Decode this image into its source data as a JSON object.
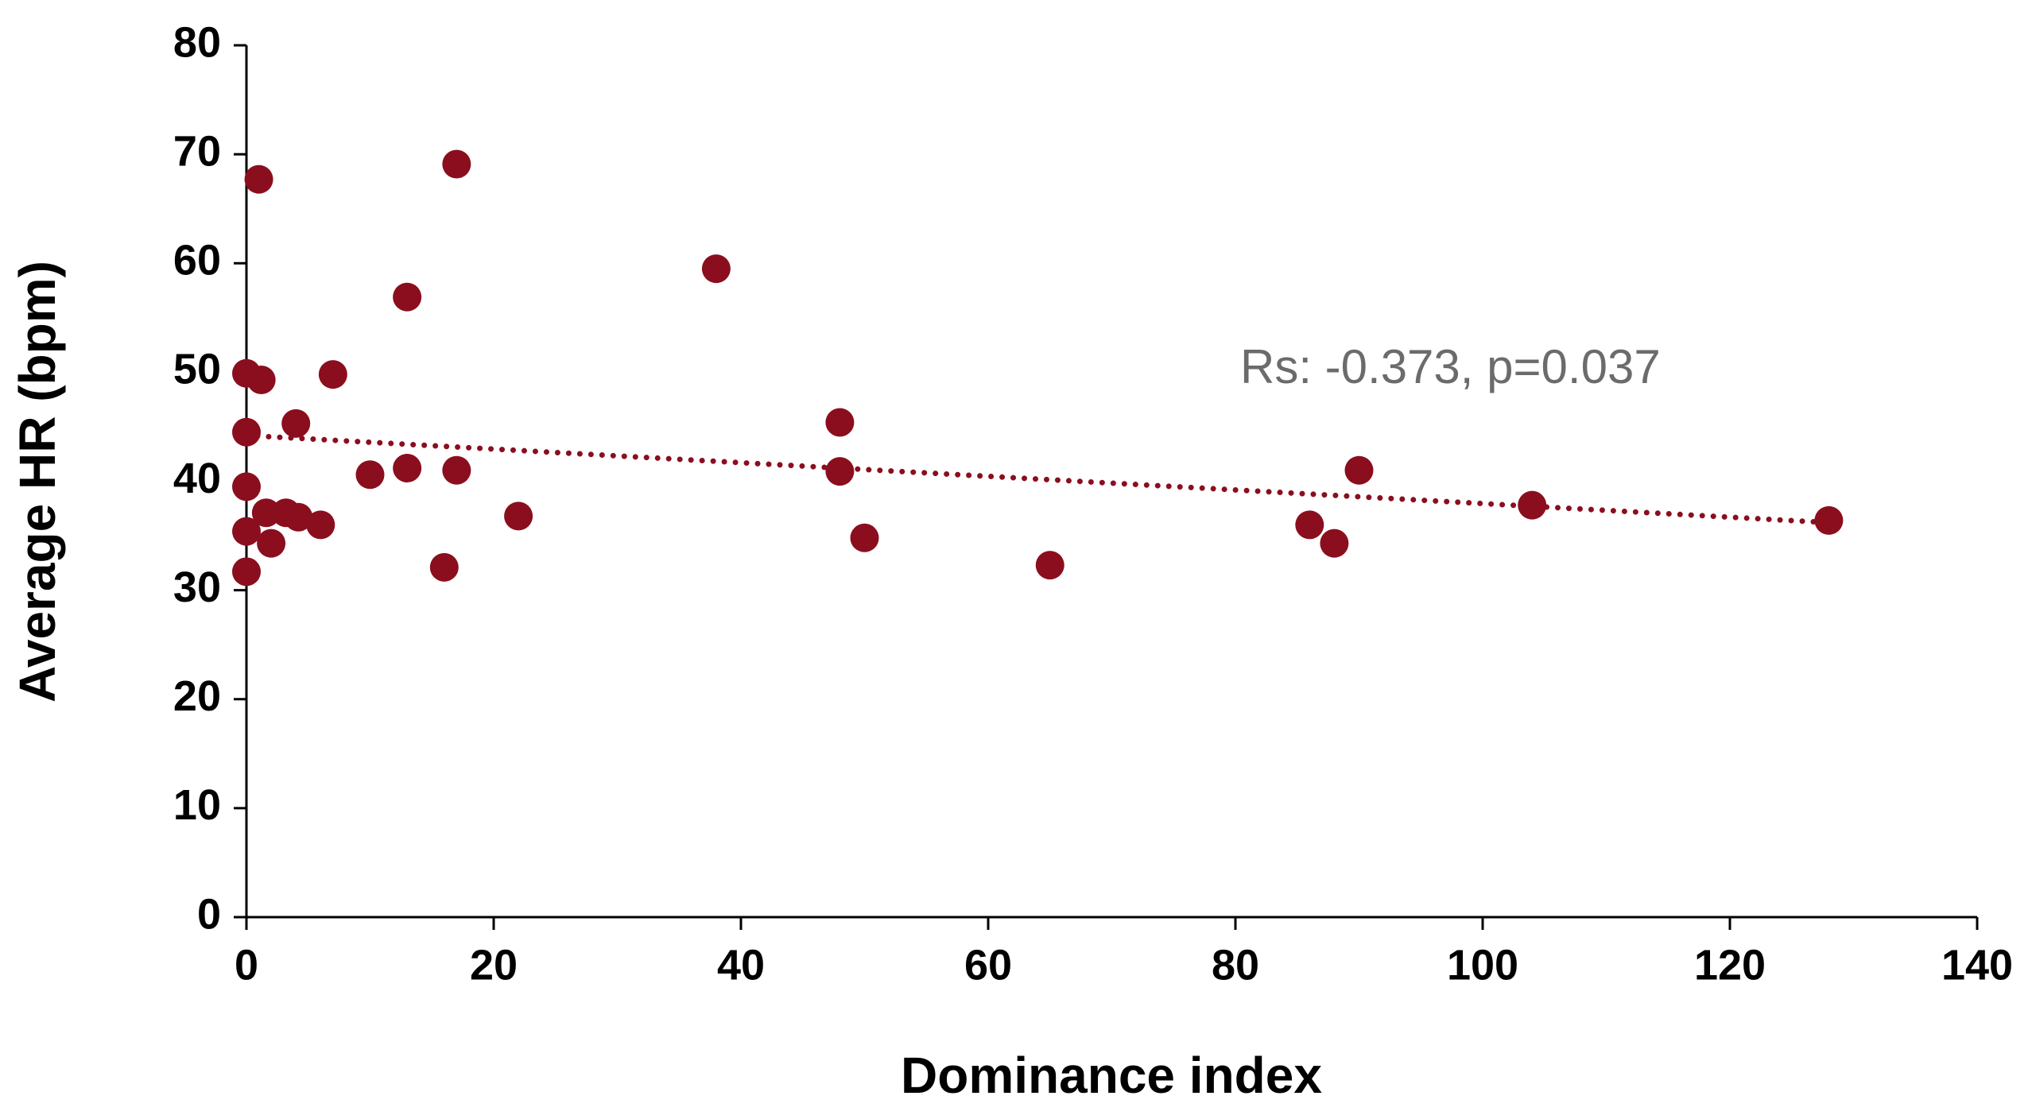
{
  "chart_data": {
    "type": "scatter",
    "xlabel": "Dominance index",
    "ylabel": "Average HR (bpm)",
    "annotation": "Rs: -0.373, p=0.037",
    "color": "#8b0e1e",
    "xlim": [
      0,
      140
    ],
    "xticks": [
      0,
      20,
      40,
      60,
      80,
      100,
      120,
      140
    ],
    "ylim": [
      0,
      80
    ],
    "yticks": [
      0,
      10,
      20,
      30,
      40,
      50,
      60,
      70,
      80
    ],
    "x": [
      1,
      17,
      13,
      38,
      0,
      1.2,
      7,
      0,
      4,
      48,
      10,
      13,
      17,
      48,
      90,
      0,
      0,
      0,
      1.6,
      2,
      3.2,
      4.2,
      6,
      16,
      22,
      50,
      65,
      86,
      88,
      104,
      128
    ],
    "values": [
      67.7,
      69.1,
      56.9,
      59.5,
      49.9,
      49.3,
      49.8,
      44.5,
      45.3,
      45.4,
      40.6,
      41.2,
      41,
      40.9,
      41,
      39.5,
      35.4,
      31.7,
      37.1,
      34.3,
      37.1,
      36.7,
      36,
      32.1,
      36.8,
      34.8,
      32.3,
      36,
      34.3,
      37.8,
      36.4
    ],
    "trendline": {
      "x": [
        0,
        128
      ],
      "y": [
        44.2,
        36.2
      ]
    }
  }
}
